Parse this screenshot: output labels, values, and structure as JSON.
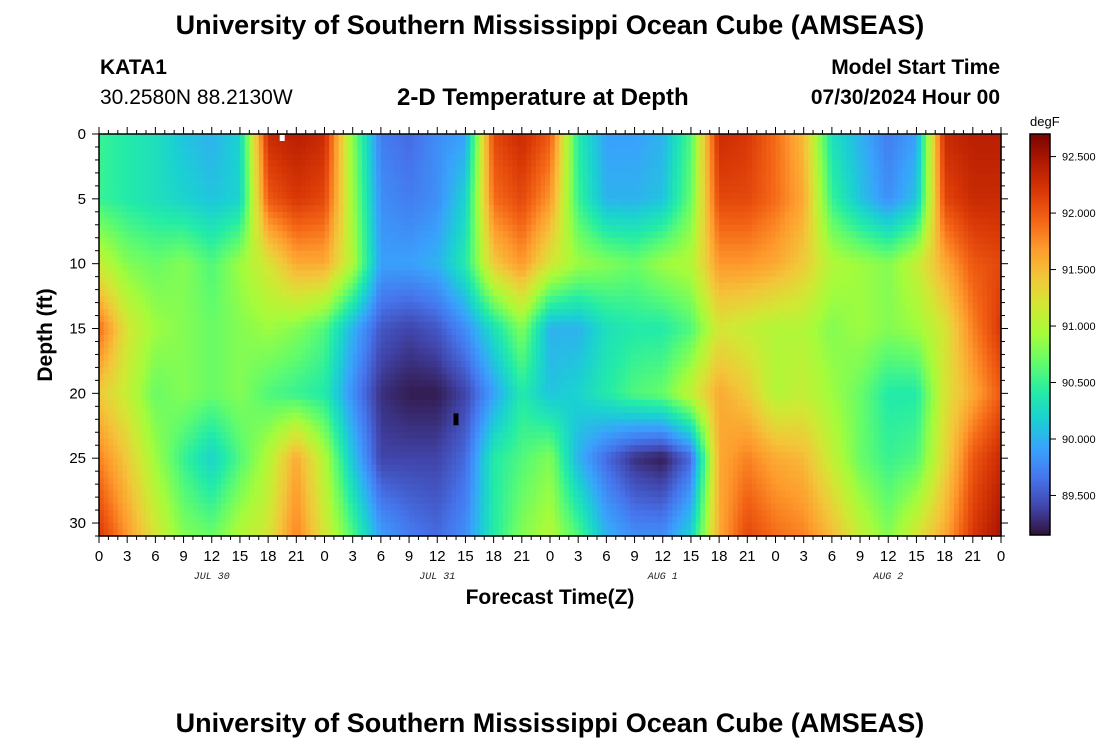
{
  "header": {
    "title": "University of Southern Mississippi Ocean Cube (AMSEAS)",
    "station": "KATA1",
    "coordinates": "30.2580N  88.2130W",
    "subtitle": "2-D Temperature at Depth",
    "model_start_label": "Model Start Time",
    "model_start_value": "07/30/2024 Hour 00"
  },
  "footer": {
    "title": "University of Southern Mississippi Ocean Cube (AMSEAS)"
  },
  "chart_data": {
    "type": "heatmap",
    "title": "2-D Temperature at Depth",
    "xlabel": "Forecast Time(Z)",
    "ylabel": "Depth (ft)",
    "x_range_hours": [
      0,
      96
    ],
    "x_tick_labels": [
      "0",
      "3",
      "6",
      "9",
      "12",
      "15",
      "18",
      "21",
      "0",
      "3",
      "6",
      "9",
      "12",
      "15",
      "18",
      "21",
      "0",
      "3",
      "6",
      "9",
      "12",
      "15",
      "18",
      "21",
      "0",
      "3",
      "6",
      "9",
      "12",
      "15",
      "18",
      "21",
      "0"
    ],
    "date_labels": [
      {
        "text": "JUL 30",
        "hour": 12
      },
      {
        "text": "JUL 31",
        "hour": 36
      },
      {
        "text": "AUG 1",
        "hour": 60
      },
      {
        "text": "AUG 2",
        "hour": 84
      }
    ],
    "ylim": [
      0,
      31
    ],
    "y_ticks": [
      0,
      5,
      10,
      15,
      20,
      25,
      30
    ],
    "colorbar": {
      "unit": "degF",
      "range": [
        89.15,
        92.7
      ],
      "ticks": [
        "92.500",
        "92.000",
        "91.500",
        "91.000",
        "90.500",
        "90.000",
        "89.500"
      ]
    },
    "colormap": [
      "#30123b",
      "#4145ab",
      "#4675ed",
      "#39a2fc",
      "#1bcfd4",
      "#24eca6",
      "#61fc6c",
      "#a4fc3b",
      "#d1e834",
      "#f3c63a",
      "#fe9b2d",
      "#f36315",
      "#d93806",
      "#b11901",
      "#7a0402"
    ],
    "value_grid_degF": {
      "depths_ft": [
        0,
        5,
        10,
        15,
        20,
        25,
        31
      ],
      "hours": [
        0,
        3,
        6,
        9,
        12,
        15,
        18,
        21,
        24,
        27,
        30,
        33,
        36,
        39,
        42,
        45,
        48,
        51,
        54,
        57,
        60,
        63,
        66,
        69,
        72,
        75,
        78,
        81,
        84,
        87,
        90,
        93,
        96
      ],
      "values": [
        [
          90.5,
          90.4,
          90.3,
          90.1,
          90.0,
          90.2,
          92.3,
          92.4,
          92.3,
          90.8,
          89.7,
          89.6,
          89.8,
          89.9,
          92.1,
          92.3,
          92.0,
          90.4,
          89.9,
          89.9,
          90.0,
          90.6,
          92.3,
          92.2,
          91.9,
          91.5,
          90.3,
          90.0,
          89.7,
          89.9,
          92.3,
          92.4,
          92.4
        ],
        [
          90.5,
          90.4,
          90.3,
          90.2,
          90.1,
          90.2,
          92.0,
          92.2,
          92.1,
          90.9,
          89.8,
          89.7,
          89.8,
          90.2,
          91.9,
          92.1,
          91.7,
          90.5,
          90.0,
          90.0,
          90.1,
          90.7,
          92.1,
          92.1,
          91.9,
          91.6,
          90.5,
          90.1,
          89.8,
          90.1,
          92.1,
          92.3,
          92.3
        ],
        [
          91.1,
          90.8,
          90.7,
          90.8,
          90.6,
          90.9,
          91.2,
          91.6,
          91.6,
          91.0,
          89.9,
          89.9,
          90.0,
          90.4,
          91.4,
          91.7,
          91.2,
          90.9,
          90.8,
          90.7,
          90.9,
          91.0,
          91.7,
          91.7,
          91.6,
          91.4,
          91.0,
          90.9,
          90.8,
          91.1,
          91.6,
          92.0,
          92.1
        ],
        [
          91.9,
          91.2,
          90.9,
          90.8,
          90.7,
          90.8,
          90.9,
          90.8,
          90.6,
          90.0,
          89.5,
          89.4,
          89.5,
          89.8,
          90.3,
          90.8,
          90.0,
          90.0,
          90.3,
          90.4,
          90.4,
          90.6,
          91.2,
          91.1,
          91.0,
          91.0,
          90.8,
          90.9,
          90.8,
          90.9,
          91.2,
          91.8,
          92.2
        ],
        [
          91.4,
          91.1,
          90.7,
          90.8,
          90.7,
          90.8,
          90.6,
          90.5,
          90.4,
          89.8,
          89.3,
          89.2,
          89.2,
          89.4,
          89.9,
          90.4,
          90.1,
          90.2,
          90.4,
          90.6,
          90.7,
          91.1,
          91.6,
          91.4,
          91.0,
          91.1,
          90.9,
          90.7,
          90.4,
          90.4,
          91.2,
          91.6,
          92.0
        ],
        [
          91.8,
          91.4,
          90.9,
          90.5,
          90.2,
          90.6,
          91.0,
          91.6,
          91.0,
          90.1,
          89.4,
          89.4,
          89.4,
          89.6,
          90.4,
          90.6,
          90.8,
          90.0,
          89.6,
          89.3,
          89.2,
          89.6,
          91.6,
          91.8,
          91.6,
          91.5,
          91.1,
          90.7,
          90.5,
          90.6,
          91.3,
          92.0,
          92.3
        ],
        [
          92.2,
          91.7,
          91.2,
          90.8,
          90.7,
          91.0,
          91.2,
          91.8,
          91.2,
          90.6,
          89.9,
          89.7,
          89.6,
          89.8,
          90.4,
          90.8,
          91.0,
          90.6,
          90.0,
          89.8,
          89.8,
          90.2,
          91.6,
          92.1,
          91.9,
          91.8,
          91.5,
          91.1,
          90.8,
          91.2,
          91.6,
          92.2,
          92.5
        ]
      ]
    },
    "markers": [
      {
        "depth_ft": 0,
        "hour": 19.5,
        "color": "#ffffff"
      },
      {
        "depth_ft": 22,
        "hour": 38,
        "color": "#000000"
      }
    ]
  }
}
